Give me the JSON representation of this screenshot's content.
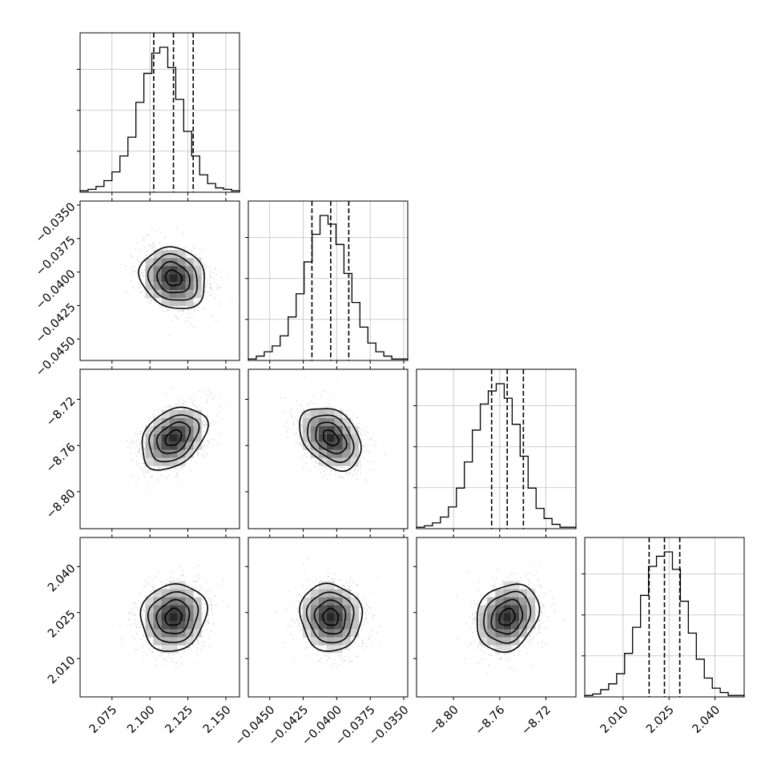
{
  "chart_data": {
    "type": "corner",
    "grid": true,
    "parameters": [
      {
        "center": 2.1155,
        "sigma": 0.0108,
        "range": [
          2.054,
          2.159
        ],
        "ticks": [
          2.075,
          2.1,
          2.125,
          2.15
        ],
        "tick_labels": [
          "2.075",
          "2.100",
          "2.125",
          "2.150"
        ],
        "quantiles": [
          2.1025,
          2.1155,
          2.1285
        ],
        "hist_counts": [
          1,
          2,
          4,
          8,
          14,
          25,
          38,
          62,
          82,
          96,
          100,
          86,
          64,
          42,
          25,
          12,
          6,
          3,
          2,
          1
        ]
      },
      {
        "center": -0.04045,
        "sigma": 0.00115,
        "range": [
          -0.0466,
          -0.0347
        ],
        "ticks": [
          -0.045,
          -0.0425,
          -0.04,
          -0.0375,
          -0.035
        ],
        "tick_labels": [
          "−0.0450",
          "−0.0425",
          "−0.0400",
          "−0.0375",
          "−0.0350"
        ],
        "quantiles": [
          -0.04185,
          -0.04045,
          -0.0391
        ],
        "hist_counts": [
          1,
          3,
          6,
          10,
          17,
          30,
          46,
          68,
          87,
          100,
          94,
          80,
          60,
          40,
          23,
          12,
          6,
          3,
          1,
          1
        ]
      },
      {
        "center": -8.7535,
        "sigma": 0.0135,
        "range": [
          -8.832,
          -8.694
        ],
        "ticks": [
          -8.8,
          -8.76,
          -8.72
        ],
        "tick_labels": [
          "−8.80",
          "−8.76",
          "−8.72"
        ],
        "quantiles": [
          -8.767,
          -8.7535,
          -8.7395
        ],
        "hist_counts": [
          1,
          2,
          4,
          8,
          15,
          28,
          46,
          68,
          86,
          95,
          100,
          90,
          72,
          50,
          28,
          14,
          7,
          3,
          1,
          1
        ]
      },
      {
        "center": 2.0235,
        "sigma": 0.0055,
        "range": [
          1.9975,
          2.0495
        ],
        "ticks": [
          2.01,
          2.025,
          2.04
        ],
        "tick_labels": [
          "2.010",
          "2.025",
          "2.040"
        ],
        "quantiles": [
          2.0185,
          2.0235,
          2.0285
        ],
        "hist_counts": [
          1,
          2,
          5,
          9,
          16,
          30,
          48,
          70,
          90,
          97,
          100,
          88,
          66,
          44,
          26,
          13,
          6,
          3,
          1,
          1
        ]
      }
    ],
    "correlations": {
      "1-0": -0.15,
      "2-0": 0.35,
      "2-1": -0.35,
      "3-0": 0.1,
      "3-1": -0.05,
      "3-2": 0.2
    },
    "contour_levels_sigma": [
      0.5,
      1.0,
      1.5,
      2.0
    ],
    "quantiles_shown": [
      0.16,
      0.5,
      0.84
    ]
  }
}
